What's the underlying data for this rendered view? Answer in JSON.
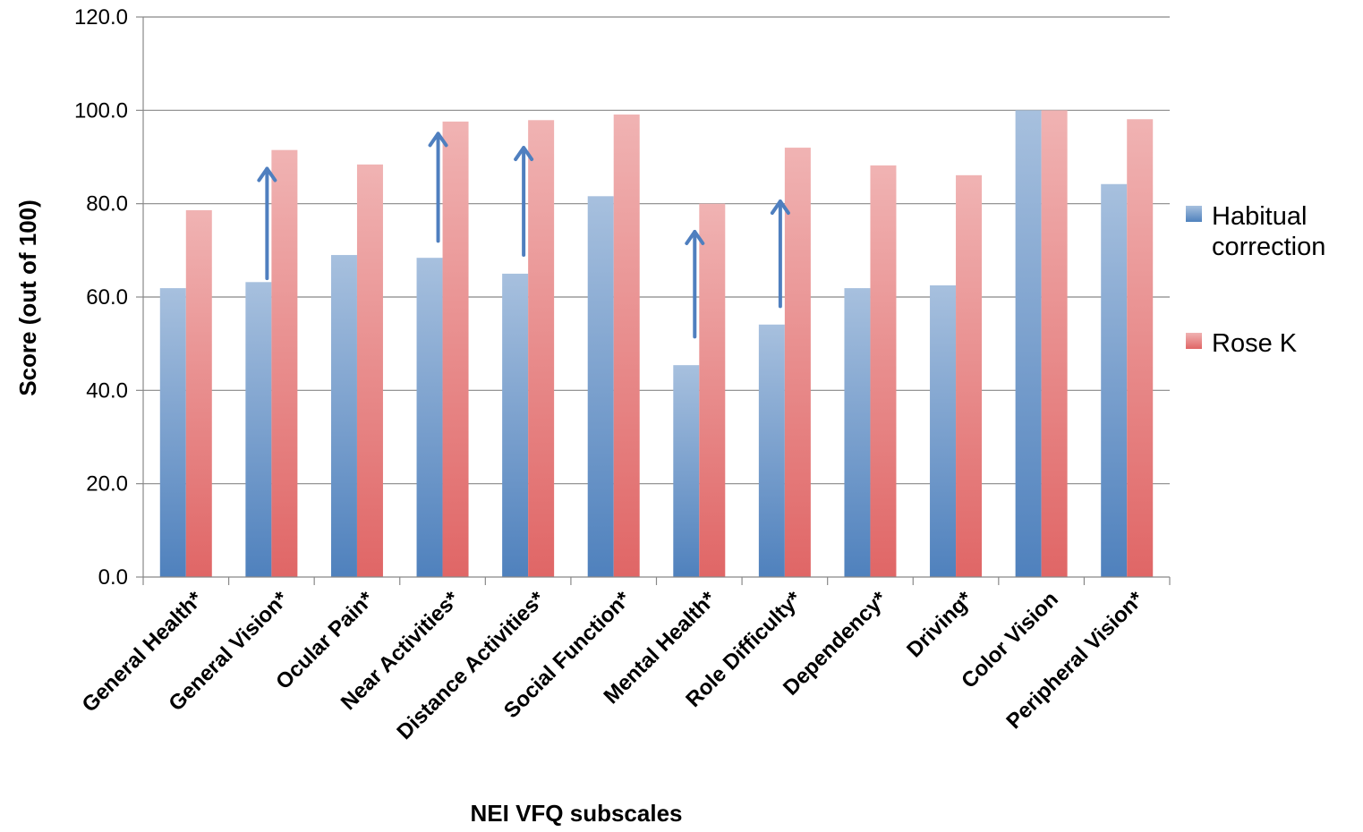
{
  "chart_data": {
    "type": "bar",
    "title": "",
    "xlabel": "NEI VFQ subscales",
    "ylabel": "Score (out of 100)",
    "ylim": [
      0,
      120
    ],
    "yticks": [
      "0.0",
      "20.0",
      "40.0",
      "60.0",
      "80.0",
      "100.0",
      "120.0"
    ],
    "grid": true,
    "legend_position": "right",
    "categories": [
      "General Health*",
      "General Vision*",
      "Ocular Pain*",
      "Near Activities*",
      "Distance Activities*",
      "Social Function*",
      "Mental Health*",
      "Role Difficulty*",
      "Dependency*",
      "Driving*",
      "Color Vision",
      "Peripheral Vision*"
    ],
    "series": [
      {
        "name": "Habitual correction",
        "color": "#4F81BD",
        "values": [
          61.9,
          63.2,
          69.0,
          68.4,
          65.0,
          81.6,
          45.4,
          54.1,
          61.9,
          62.5,
          100.0,
          84.2
        ]
      },
      {
        "name": "Rose K",
        "color": "#E06666",
        "values": [
          78.6,
          91.5,
          88.4,
          97.6,
          97.9,
          99.1,
          80.0,
          92.0,
          88.2,
          86.1,
          100.0,
          98.1
        ]
      }
    ],
    "annotations": [
      {
        "type": "arrow",
        "category": "General Vision*",
        "from": 64.0,
        "to": 87.5
      },
      {
        "type": "arrow",
        "category": "Near Activities*",
        "from": 72.0,
        "to": 95.0
      },
      {
        "type": "arrow",
        "category": "Distance Activities*",
        "from": 69.0,
        "to": 92.0
      },
      {
        "type": "arrow",
        "category": "Mental Health*",
        "from": 51.5,
        "to": 74.0
      },
      {
        "type": "arrow",
        "category": "Role Difficulty*",
        "from": 58.0,
        "to": 80.5
      }
    ]
  }
}
